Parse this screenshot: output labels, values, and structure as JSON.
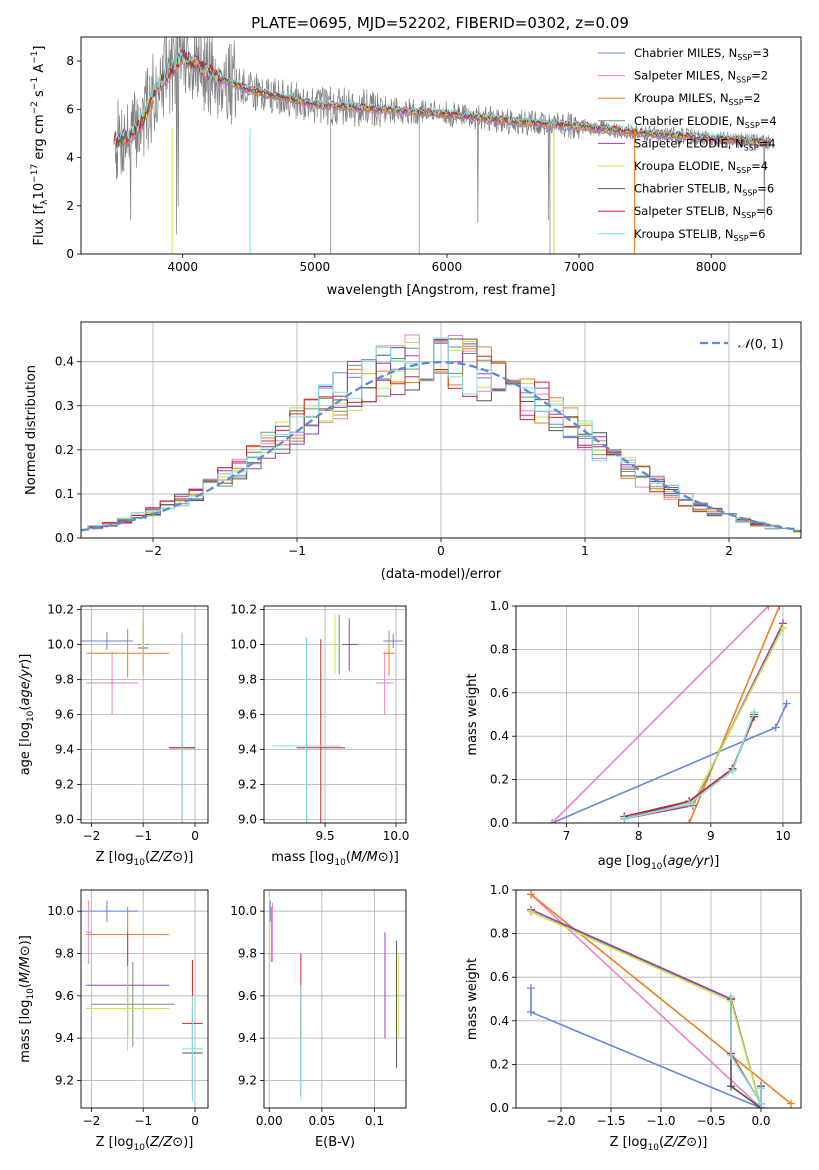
{
  "figure": {
    "title": "PLATE=0695, MJD=52202, FIBERID=0302, z=0.09"
  },
  "colors": {
    "series": [
      "#6688dd",
      "#ee82c0",
      "#ee7f22",
      "#6a9d5f",
      "#9b3db8",
      "#c7e54b",
      "#555555",
      "#c8282a",
      "#7fe0e6"
    ],
    "spectrum": "#808080",
    "grid": "#b0b0b0"
  },
  "series_names": [
    "Chabrier MILES, N_SSP=3",
    "Salpeter MILES, N_SSP=2",
    "Kroupa MILES, N_SSP=2",
    "Chabrier ELODIE, N_SSP=4",
    "Salpeter ELODIE, N_SSP=4",
    "Kroupa ELODIE, N_SSP=4",
    "Chabrier STELIB, N_SSP=6",
    "Salpeter STELIB, N_SSP=6",
    "Kroupa STELIB, N_SSP=6"
  ],
  "chart_data": [
    {
      "id": "spectrum",
      "type": "line",
      "title": "PLATE=0695, MJD=52202, FIBERID=0302, z=0.09",
      "xlabel": "wavelength [Angstrom, rest frame]",
      "ylabel": "Flux [f_λ 10^-17 erg cm^-2 s^-1 A^-1]",
      "xlim": [
        3230,
        8680
      ],
      "ylim": [
        0,
        9
      ],
      "xticks": [
        4000,
        5000,
        6000,
        7000,
        8000
      ],
      "yticks": [
        0,
        2,
        4,
        6,
        8
      ],
      "grid": false,
      "legend": "top-right",
      "model_continuum": {
        "x": [
          3500,
          3600,
          3700,
          3800,
          4000,
          4200,
          4500,
          5000,
          5500,
          6000,
          6500,
          7000,
          7500,
          8000,
          8500
        ],
        "y": [
          4.7,
          4.9,
          5.5,
          6.9,
          8.2,
          7.5,
          6.8,
          6.2,
          6.0,
          5.8,
          5.5,
          5.3,
          5.0,
          4.8,
          4.6
        ]
      }
    },
    {
      "id": "residual_hist",
      "type": "line",
      "xlabel": "(data-model)/error",
      "ylabel": "Normed distribution",
      "xlim": [
        -2.5,
        2.5
      ],
      "ylim": [
        0,
        0.49
      ],
      "xticks": [
        -2,
        -1,
        0,
        1,
        2
      ],
      "yticks": [
        0.0,
        0.1,
        0.2,
        0.3,
        0.4
      ],
      "grid": true,
      "legend": "top-right",
      "reference_curve": {
        "name": "N(0,1)",
        "mean": 0,
        "sigma": 1
      }
    },
    {
      "id": "age_vs_Z",
      "type": "scatter",
      "xlabel": "Z [log10(Z/Z⊙)]",
      "ylabel": "age  [log10(age/yr)]",
      "xlim": [
        -2.2,
        0.25
      ],
      "ylim": [
        8.98,
        10.22
      ],
      "xticks": [
        -2,
        -1,
        0
      ],
      "yticks": [
        9.0,
        9.2,
        9.4,
        9.6,
        9.8,
        10.0,
        10.2
      ],
      "grid": true,
      "points": [
        {
          "x": -1.7,
          "y": 10.02,
          "xerr": 0.5,
          "yerr": 0.05,
          "series": 0
        },
        {
          "x": -1.3,
          "y": 9.95,
          "xerr": 0.8,
          "yerr": 0.14,
          "series": 2
        },
        {
          "x": -1.6,
          "y": 9.78,
          "xerr": 0.5,
          "yerr": 0.18,
          "series": 1
        },
        {
          "x": -1.0,
          "y": 10.0,
          "xerr": 0.1,
          "yerr": 0.17,
          "series": 3
        },
        {
          "x": -1.0,
          "y": 9.98,
          "xerr": 0.1,
          "yerr": 0.15,
          "series": 4
        },
        {
          "x": -1.0,
          "y": 10.0,
          "xerr": 0.05,
          "yerr": 0.17,
          "series": 5
        },
        {
          "x": -0.25,
          "y": 9.41,
          "xerr": 0.25,
          "yerr": 0.65,
          "series": 6
        },
        {
          "x": -0.25,
          "y": 9.41,
          "xerr": 0.25,
          "yerr": 0.6,
          "series": 7
        },
        {
          "x": -0.25,
          "y": 9.42,
          "xerr": 0.03,
          "yerr": 0.65,
          "series": 8
        }
      ]
    },
    {
      "id": "age_vs_mass",
      "type": "scatter",
      "xlabel": "mass [log10(M/M⊙)]",
      "ylabel": "",
      "xlim": [
        9.07,
        10.07
      ],
      "ylim": [
        8.98,
        10.22
      ],
      "xticks": [
        9.5,
        10.0
      ],
      "yticks": [
        9.0,
        9.2,
        9.4,
        9.6,
        9.8,
        10.0,
        10.2
      ],
      "grid": true,
      "points": [
        {
          "x": 9.98,
          "y": 10.02,
          "xerr": 0.07,
          "yerr": 0.04,
          "series": 0
        },
        {
          "x": 9.92,
          "y": 9.78,
          "xerr": 0.06,
          "yerr": 0.18,
          "series": 1
        },
        {
          "x": 9.95,
          "y": 9.95,
          "xerr": 0.04,
          "yerr": 0.13,
          "series": 2
        },
        {
          "x": 9.6,
          "y": 10.0,
          "xerr": 0.05,
          "yerr": 0.17,
          "series": 3
        },
        {
          "x": 9.67,
          "y": 10.0,
          "xerr": 0.06,
          "yerr": 0.15,
          "series": 4
        },
        {
          "x": 9.57,
          "y": 10.0,
          "xerr": 0.05,
          "yerr": 0.17,
          "series": 5
        },
        {
          "x": 9.37,
          "y": 9.42,
          "xerr": 0.23,
          "yerr": 0.62,
          "series": 6
        },
        {
          "x": 9.47,
          "y": 9.41,
          "xerr": 0.17,
          "yerr": 0.62,
          "series": 7
        },
        {
          "x": 9.37,
          "y": 9.42,
          "xerr": 0.24,
          "yerr": 0.62,
          "series": 8
        }
      ]
    },
    {
      "id": "weight_vs_age",
      "type": "line",
      "xlabel": "age  [log10(age/yr)]",
      "ylabel": "mass weight",
      "xlim": [
        6.3,
        10.25
      ],
      "ylim": [
        0,
        1.0
      ],
      "xticks": [
        7,
        8,
        9,
        10
      ],
      "yticks": [
        0.0,
        0.2,
        0.4,
        0.6,
        0.8,
        1.0
      ],
      "grid": true,
      "lines": [
        {
          "series": 0,
          "x": [
            6.8,
            9.9,
            10.05
          ],
          "y": [
            0.0,
            0.44,
            0.55
          ]
        },
        {
          "series": 1,
          "x": [
            6.8,
            9.8
          ],
          "y": [
            0.0,
            1.0
          ]
        },
        {
          "series": 2,
          "x": [
            8.7,
            9.95
          ],
          "y": [
            0.0,
            1.0
          ]
        },
        {
          "series": 3,
          "x": [
            7.8,
            8.75,
            10.0
          ],
          "y": [
            0.02,
            0.09,
            0.9
          ]
        },
        {
          "series": 4,
          "x": [
            7.8,
            8.75,
            10.0
          ],
          "y": [
            0.02,
            0.08,
            0.92
          ]
        },
        {
          "series": 5,
          "x": [
            7.8,
            8.75,
            10.0
          ],
          "y": [
            0.02,
            0.09,
            0.9
          ]
        },
        {
          "series": 6,
          "x": [
            7.8,
            8.7,
            9.3,
            9.6
          ],
          "y": [
            0.02,
            0.1,
            0.25,
            0.5
          ]
        },
        {
          "series": 7,
          "x": [
            7.8,
            8.7,
            9.3,
            9.6
          ],
          "y": [
            0.03,
            0.1,
            0.25,
            0.49
          ]
        },
        {
          "series": 8,
          "x": [
            7.8,
            8.7,
            9.3,
            9.6
          ],
          "y": [
            0.02,
            0.09,
            0.24,
            0.51
          ]
        }
      ]
    },
    {
      "id": "mass_vs_Z",
      "type": "scatter",
      "xlabel": "Z [log10(Z/Z⊙)]",
      "ylabel": "mass [log10(M/M⊙)]",
      "xlim": [
        -2.2,
        0.25
      ],
      "ylim": [
        9.07,
        10.1
      ],
      "xticks": [
        -2,
        -1,
        0
      ],
      "yticks": [
        9.2,
        9.4,
        9.6,
        9.8,
        10.0
      ],
      "grid": true,
      "points": [
        {
          "x": -1.7,
          "y": 10.0,
          "xerr": 0.6,
          "yerr": 0.05,
          "series": 0
        },
        {
          "x": -1.3,
          "y": 9.89,
          "xerr": 0.8,
          "yerr": 0.13,
          "series": 2
        },
        {
          "x": -2.05,
          "y": 9.9,
          "xerr": 0.05,
          "yerr": 0.15,
          "series": 1
        },
        {
          "x": -1.2,
          "y": 9.56,
          "xerr": 0.8,
          "yerr": 0.2,
          "series": 3
        },
        {
          "x": -1.3,
          "y": 9.65,
          "xerr": 0.8,
          "yerr": 0.25,
          "series": 4
        },
        {
          "x": -1.3,
          "y": 9.54,
          "xerr": 0.8,
          "yerr": 0.2,
          "series": 5
        },
        {
          "x": -0.05,
          "y": 9.33,
          "xerr": 0.2,
          "yerr": 0.2,
          "series": 6
        },
        {
          "x": -0.05,
          "y": 9.47,
          "xerr": 0.2,
          "yerr": 0.3,
          "series": 7
        },
        {
          "x": -0.05,
          "y": 9.35,
          "xerr": 0.2,
          "yerr": 0.25,
          "series": 8
        }
      ]
    },
    {
      "id": "mass_vs_ebv",
      "type": "scatter",
      "xlabel": "E(B-V)",
      "ylabel": "",
      "xlim": [
        -0.005,
        0.13
      ],
      "ylim": [
        9.07,
        10.1
      ],
      "xticks": [
        0.0,
        0.05,
        0.1
      ],
      "yticks": [
        9.2,
        9.4,
        9.6,
        9.8,
        10.0
      ],
      "grid": true,
      "points": [
        {
          "x": 0.001,
          "y": 10.0,
          "xerr": 0,
          "yerr": 0.05,
          "series": 0
        },
        {
          "x": 0.003,
          "y": 9.9,
          "xerr": 0,
          "yerr": 0.14,
          "series": 1
        },
        {
          "x": 0.002,
          "y": 9.89,
          "xerr": 0,
          "yerr": 0.13,
          "series": 2
        },
        {
          "x": 0.121,
          "y": 9.56,
          "xerr": 0,
          "yerr": 0.3,
          "series": 6
        },
        {
          "x": 0.11,
          "y": 9.65,
          "xerr": 0,
          "yerr": 0.25,
          "series": 4
        },
        {
          "x": 0.123,
          "y": 9.6,
          "xerr": 0,
          "yerr": 0.2,
          "series": 5
        },
        {
          "x": 0.03,
          "y": 9.33,
          "xerr": 0,
          "yerr": 0.2,
          "series": 3
        },
        {
          "x": 0.03,
          "y": 9.6,
          "xerr": 0,
          "yerr": 0.2,
          "series": 7
        },
        {
          "x": 0.03,
          "y": 9.38,
          "xerr": 0,
          "yerr": 0.27,
          "series": 8
        }
      ]
    },
    {
      "id": "weight_vs_Z",
      "type": "line",
      "xlabel": "Z [log10(Z/Z⊙)]",
      "ylabel": "mass weight",
      "xlim": [
        -2.45,
        0.4
      ],
      "ylim": [
        0,
        1.0
      ],
      "xticks": [
        -2.0,
        -1.5,
        -1.0,
        -0.5,
        0.0
      ],
      "yticks": [
        0.0,
        0.2,
        0.4,
        0.6,
        0.8,
        1.0
      ],
      "grid": true,
      "lines": [
        {
          "series": 0,
          "x": [
            -2.3,
            -2.3,
            0.0,
            0.0
          ],
          "y": [
            0.55,
            0.44,
            0.0,
            0.02
          ]
        },
        {
          "series": 1,
          "x": [
            -2.3,
            0.0
          ],
          "y": [
            0.98,
            0.0
          ]
        },
        {
          "series": 2,
          "x": [
            -2.3,
            0.3
          ],
          "y": [
            0.98,
            0.02
          ]
        },
        {
          "series": 3,
          "x": [
            -2.3,
            -0.3,
            0.0
          ],
          "y": [
            0.9,
            0.5,
            0.0
          ]
        },
        {
          "series": 4,
          "x": [
            -2.3,
            -0.3,
            0.0
          ],
          "y": [
            0.91,
            0.5,
            0.0
          ]
        },
        {
          "series": 5,
          "x": [
            -2.3,
            -0.3,
            0.0
          ],
          "y": [
            0.9,
            0.49,
            0.0
          ]
        },
        {
          "series": 6,
          "x": [
            -0.3,
            -0.3,
            0.0,
            0.0
          ],
          "y": [
            0.5,
            0.1,
            0.0,
            0.1
          ]
        },
        {
          "series": 7,
          "x": [
            -0.3,
            -0.3,
            0.0,
            0.0
          ],
          "y": [
            0.5,
            0.25,
            0.02,
            0.09
          ]
        },
        {
          "series": 8,
          "x": [
            -0.3,
            -0.3,
            0.0,
            0.0
          ],
          "y": [
            0.51,
            0.24,
            0.02,
            0.09
          ]
        }
      ]
    }
  ]
}
